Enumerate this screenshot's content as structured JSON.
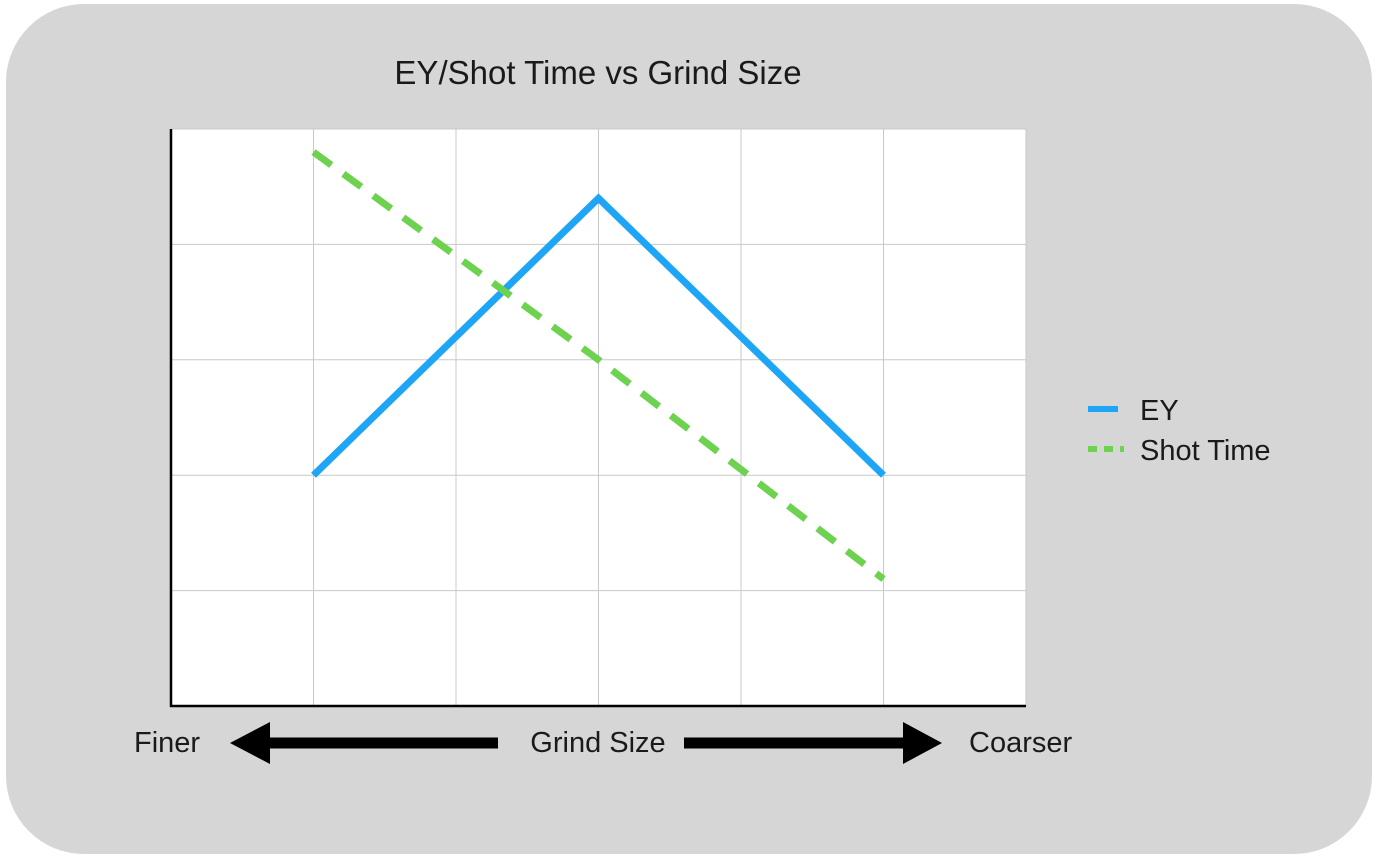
{
  "chart_data": {
    "type": "line",
    "title": "EY/Shot Time vs Grind Size",
    "x": [
      1,
      2,
      3,
      4,
      5
    ],
    "xlim": [
      0,
      6
    ],
    "ylim": [
      0,
      5
    ],
    "grid": true,
    "legend": "right",
    "series": [
      {
        "name": "EY",
        "x": [
          1,
          3,
          5
        ],
        "values": [
          2,
          4.4,
          2
        ],
        "color": "#1ea5f5",
        "style": "solid"
      },
      {
        "name": "Shot Time",
        "x": [
          1,
          3,
          5
        ],
        "values": [
          4.8,
          3,
          1.1
        ],
        "color": "#6dd24f",
        "style": "dashed"
      }
    ],
    "xaxis": {
      "left_label": "Finer",
      "center_label": "Grind Size",
      "right_label": "Coarser"
    }
  }
}
